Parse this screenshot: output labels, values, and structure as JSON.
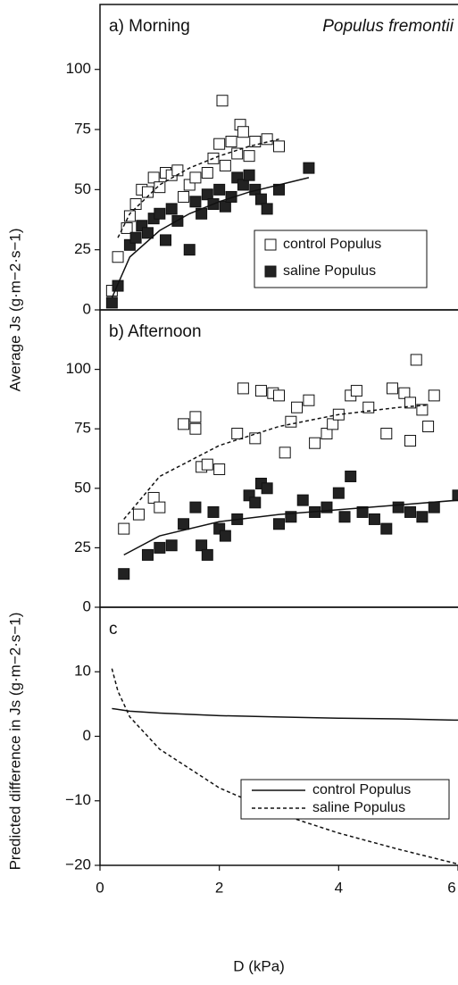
{
  "chart_data": [
    {
      "type": "scatter",
      "title": "a) Morning",
      "subtitle": "Populus fremontii",
      "y_label": "Average Js (g·m−2·s−1)",
      "xlim": [
        0,
        6
      ],
      "ylim": [
        0,
        127
      ],
      "yticks": [
        0,
        25,
        50,
        75,
        100
      ],
      "legend": "lower right",
      "series": [
        {
          "name": "control Populus",
          "color": "#ffffff",
          "marker": "square",
          "x": [
            0.2,
            0.3,
            0.45,
            0.5,
            0.6,
            0.7,
            0.8,
            0.9,
            1.0,
            1.1,
            1.2,
            1.3,
            1.4,
            1.5,
            1.6,
            1.8,
            1.9,
            2.0,
            2.05,
            2.1,
            2.2,
            2.3,
            2.35,
            2.4,
            2.5,
            2.6,
            2.8,
            3.0
          ],
          "values": [
            8,
            22,
            34,
            39,
            44,
            50,
            49,
            55,
            51,
            57,
            56,
            58,
            47,
            52,
            55,
            57,
            63,
            69,
            87,
            60,
            70,
            65,
            77,
            74,
            64,
            70,
            71,
            68
          ]
        },
        {
          "name": "saline Populus",
          "color": "#222222",
          "marker": "square",
          "x": [
            0.2,
            0.3,
            0.5,
            0.6,
            0.7,
            0.8,
            0.9,
            1.0,
            1.1,
            1.2,
            1.3,
            1.5,
            1.6,
            1.7,
            1.8,
            1.9,
            2.0,
            2.1,
            2.2,
            2.3,
            2.4,
            2.5,
            2.6,
            2.7,
            2.8,
            3.0,
            3.5
          ],
          "values": [
            3,
            10,
            27,
            30,
            35,
            32,
            38,
            40,
            29,
            42,
            37,
            25,
            45,
            40,
            48,
            44,
            50,
            43,
            47,
            55,
            52,
            56,
            50,
            46,
            42,
            50,
            59
          ]
        },
        {
          "color": "#111111",
          "line": "dashed",
          "x": [
            0.3,
            0.5,
            1,
            1.5,
            2,
            2.5,
            3
          ],
          "values": [
            30,
            40,
            52,
            59,
            64,
            68,
            71
          ]
        },
        {
          "color": "#111111",
          "line": "solid",
          "x": [
            0.2,
            0.5,
            1,
            1.5,
            2,
            2.5,
            3,
            3.5
          ],
          "values": [
            5,
            22,
            33,
            40,
            45,
            49,
            52,
            55
          ]
        }
      ]
    },
    {
      "type": "scatter",
      "title": "b) Afternoon",
      "xlim": [
        0,
        6
      ],
      "ylim": [
        0,
        125
      ],
      "yticks": [
        0,
        25,
        50,
        75,
        100
      ],
      "series": [
        {
          "color": "#ffffff",
          "marker": "square",
          "x": [
            0.4,
            0.65,
            0.9,
            1.0,
            1.4,
            1.6,
            1.6,
            1.7,
            1.8,
            2.0,
            2.3,
            2.4,
            2.6,
            2.7,
            2.9,
            3.0,
            3.1,
            3.2,
            3.3,
            3.5,
            3.6,
            3.8,
            3.9,
            4.0,
            4.2,
            4.3,
            4.5,
            4.8,
            4.9,
            5.1,
            5.2,
            5.3,
            5.4,
            5.5,
            5.6,
            5.2
          ],
          "values": [
            33,
            39,
            46,
            42,
            77,
            75,
            80,
            59,
            60,
            58,
            73,
            92,
            71,
            91,
            90,
            89,
            65,
            78,
            84,
            87,
            69,
            73,
            77,
            81,
            89,
            91,
            84,
            73,
            92,
            90,
            86,
            104,
            83,
            76,
            89,
            70
          ]
        },
        {
          "color": "#222222",
          "marker": "square",
          "x": [
            0.4,
            0.8,
            1.0,
            1.2,
            1.4,
            1.6,
            1.7,
            1.8,
            1.9,
            2.0,
            2.1,
            2.3,
            2.5,
            2.6,
            2.7,
            2.8,
            3.0,
            3.2,
            3.4,
            3.6,
            3.8,
            4.0,
            4.1,
            4.2,
            4.4,
            4.6,
            4.8,
            5.0,
            5.2,
            5.4,
            5.6,
            6.0
          ],
          "values": [
            14,
            22,
            25,
            26,
            35,
            42,
            26,
            22,
            40,
            33,
            30,
            37,
            47,
            44,
            52,
            50,
            35,
            38,
            45,
            40,
            42,
            48,
            38,
            55,
            40,
            37,
            33,
            42,
            40,
            38,
            42,
            47
          ]
        },
        {
          "color": "#111111",
          "line": "dashed",
          "x": [
            0.4,
            1,
            2,
            3,
            4,
            5,
            5.5
          ],
          "values": [
            37,
            55,
            68,
            76,
            81,
            84,
            85
          ]
        },
        {
          "color": "#111111",
          "line": "solid",
          "x": [
            0.4,
            1,
            2,
            3,
            4,
            5,
            6
          ],
          "values": [
            22,
            30,
            36,
            39,
            41,
            43,
            45
          ]
        }
      ]
    },
    {
      "type": "line",
      "title": "c",
      "y_label": "Predicted difference in Js (g·m−2·s−1)",
      "x_label": "D (kPa)",
      "xlim": [
        0,
        6
      ],
      "xticks": [
        0,
        2,
        4,
        6
      ],
      "ylim": [
        -20,
        20
      ],
      "yticks": [
        {
          "value": -20,
          "label": "−20"
        },
        {
          "value": -10,
          "label": "−10"
        },
        0,
        10
      ],
      "legend": "lower right",
      "series": [
        {
          "name": "control Populus",
          "color": "#111111",
          "line": "solid",
          "x": [
            0.2,
            0.5,
            1,
            2,
            3,
            4,
            5,
            6
          ],
          "values": [
            4.3,
            3.9,
            3.6,
            3.2,
            3.0,
            2.8,
            2.7,
            2.5
          ]
        },
        {
          "name": "saline Populus",
          "color": "#111111",
          "line": "dashed",
          "x": [
            0.2,
            0.3,
            0.5,
            1,
            2,
            3,
            4,
            5,
            6
          ],
          "values": [
            10.5,
            7,
            3,
            -2,
            -8,
            -12,
            -15,
            -17.5,
            -19.8
          ]
        }
      ]
    }
  ]
}
